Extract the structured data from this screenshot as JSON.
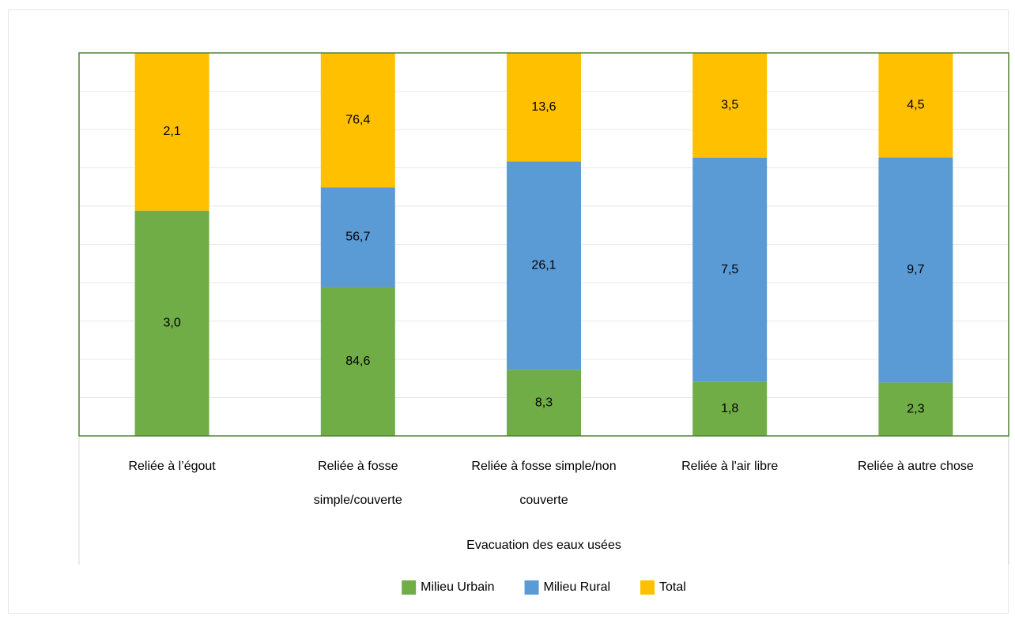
{
  "chart_data": {
    "type": "bar",
    "stack": "percent",
    "x_label": "Evacuation des eaux usées",
    "categories": [
      "Reliée à l’égout",
      "Reliée à fosse simple/couverte",
      "Reliée à fosse simple/non couverte",
      "Reliée à l'air libre",
      "Reliée à autre chose"
    ],
    "series": [
      {
        "name": "Milieu Urbain",
        "color": "#70ad47",
        "values": [
          3,
          84.6,
          8.3,
          1.8,
          2.3
        ],
        "value_labels": [
          "3,0",
          "84,6",
          "8,3",
          "1,8",
          "2,3"
        ]
      },
      {
        "name": "Milieu Rural",
        "color": "#5b9bd5",
        "values": [
          null,
          56.7,
          26.1,
          7.5,
          9.7
        ],
        "value_labels": [
          null,
          "56,7",
          "26,1",
          "7,5",
          "9,7"
        ]
      },
      {
        "name": "Total",
        "color": "#ffc000",
        "values": [
          2.1,
          76.4,
          13.6,
          3.5,
          4.5
        ],
        "value_labels": [
          "2,1",
          "76,4",
          "13,6",
          "3,5",
          "4,5"
        ]
      }
    ],
    "ylim": [
      0,
      100
    ],
    "yticks": [
      0,
      10,
      20,
      30,
      40,
      50,
      60,
      70,
      80,
      90,
      100
    ],
    "ytick_labels": false,
    "grid": true,
    "legend": "bottom"
  }
}
